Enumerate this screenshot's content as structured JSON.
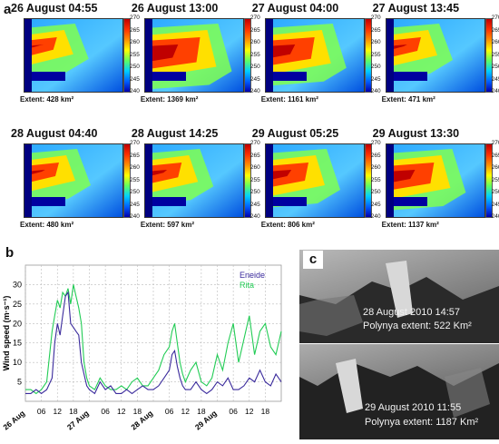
{
  "panel_a": {
    "letter": "a",
    "colorbar_ticks": [
      "270",
      "265",
      "260",
      "255",
      "250",
      "245",
      "240"
    ],
    "tiles": [
      {
        "title": "26 August 04:55",
        "extent": "Extent: 428 km²",
        "level": 0.35
      },
      {
        "title": "26 August 13:00",
        "extent": "Extent: 1369 km²",
        "level": 0.9
      },
      {
        "title": "27 August 04:00",
        "extent": "Extent: 1161 km²",
        "level": 0.75
      },
      {
        "title": "27 August 13:45",
        "extent": "Extent: 471 km²",
        "level": 0.4
      },
      {
        "title": "28 August 04:40",
        "extent": "Extent: 480 km²",
        "level": 0.4
      },
      {
        "title": "28 August 14:25",
        "extent": "Extent: 597 km²",
        "level": 0.45
      },
      {
        "title": "29 August 05:25",
        "extent": "Extent: 806 km²",
        "level": 0.6
      },
      {
        "title": "29 August 13:30",
        "extent": "Extent: 1137 km²",
        "level": 0.72
      }
    ]
  },
  "panel_b": {
    "letter": "b"
  },
  "panel_c": {
    "letter": "c",
    "top_date": "28 August 2010  14:57",
    "top_extent": "Polynya extent:  522 Km²",
    "bottom_date": "29 August 2010  11:55",
    "bottom_extent": "Polynya extent:  1187 Km²"
  },
  "chart_data": {
    "type": "line",
    "ylabel": "Wind speed  (m·s⁻¹)",
    "xlabel": "",
    "ylim": [
      0,
      35
    ],
    "y_ticks": [
      5,
      10,
      15,
      20,
      25,
      30
    ],
    "x_ticks": [
      "26 Aug",
      "06",
      "12",
      "18",
      "27 Aug",
      "06",
      "12",
      "18",
      "28 Aug",
      "06",
      "12",
      "18",
      "29 Aug",
      "06",
      "12",
      "18"
    ],
    "x_hours": [
      0,
      96
    ],
    "legend_position": "top-right",
    "series": [
      {
        "name": "Eneide",
        "color": "#3a2a9c",
        "x": [
          0,
          2,
          4,
          6,
          8,
          10,
          11,
          12,
          13,
          14,
          15,
          16,
          17,
          18,
          19,
          20,
          21,
          22,
          23,
          24,
          26,
          28,
          30,
          32,
          34,
          36,
          38,
          40,
          42,
          44,
          46,
          48,
          50,
          52,
          54,
          55,
          56,
          57,
          58,
          59,
          60,
          62,
          64,
          66,
          68,
          70,
          72,
          74,
          76,
          78,
          80,
          82,
          84,
          86,
          88,
          90,
          92,
          94,
          96
        ],
        "y": [
          2,
          2,
          3,
          2,
          3,
          6,
          15,
          20,
          17,
          22,
          27,
          28,
          20,
          19,
          18,
          17,
          10,
          7,
          4,
          3,
          2,
          5,
          3,
          4,
          2,
          2,
          3,
          2,
          3,
          4,
          3,
          3,
          4,
          6,
          8,
          12,
          13,
          9,
          6,
          4,
          3,
          3,
          5,
          3,
          2,
          3,
          5,
          4,
          6,
          3,
          3,
          4,
          6,
          5,
          8,
          5,
          4,
          7,
          5
        ]
      },
      {
        "name": "Rita",
        "color": "#22cc55",
        "x": [
          0,
          2,
          4,
          6,
          8,
          10,
          11,
          12,
          13,
          14,
          15,
          16,
          17,
          18,
          19,
          20,
          21,
          22,
          23,
          24,
          26,
          28,
          30,
          32,
          34,
          36,
          38,
          40,
          42,
          44,
          46,
          48,
          50,
          52,
          54,
          55,
          56,
          57,
          58,
          59,
          60,
          62,
          64,
          66,
          68,
          70,
          72,
          74,
          76,
          78,
          80,
          82,
          84,
          86,
          88,
          90,
          92,
          94,
          96
        ],
        "y": [
          3,
          3,
          2,
          3,
          5,
          18,
          22,
          26,
          24,
          28,
          27,
          29,
          25,
          30,
          27,
          24,
          20,
          10,
          6,
          4,
          3,
          6,
          4,
          3,
          3,
          4,
          3,
          5,
          6,
          4,
          4,
          6,
          8,
          12,
          14,
          18,
          20,
          15,
          10,
          7,
          5,
          8,
          10,
          5,
          4,
          6,
          12,
          8,
          15,
          20,
          10,
          16,
          22,
          12,
          18,
          20,
          14,
          12,
          18
        ]
      }
    ]
  }
}
